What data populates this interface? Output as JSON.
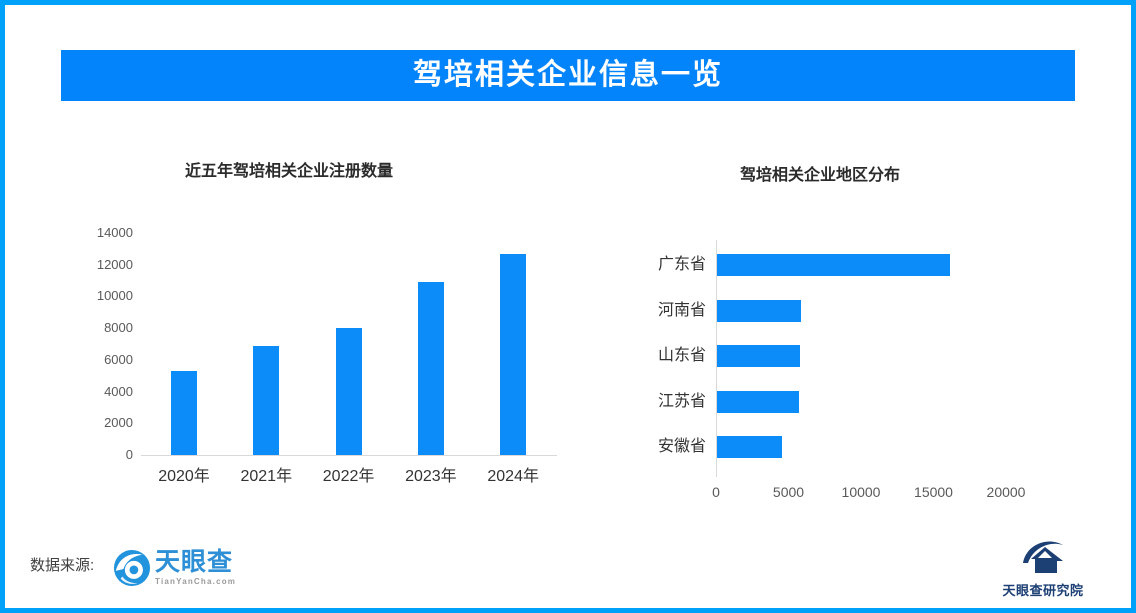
{
  "colors": {
    "page_border": "#00A1F8",
    "banner_bg": "#0484FB",
    "bar_fill": "#0C8CF8",
    "axis_line": "#D9D9D9",
    "tianyancha_blue": "#2D8FD6",
    "research_navy": "#1C3F74"
  },
  "header": {
    "title": "驾培相关企业信息一览"
  },
  "chart_data": [
    {
      "type": "bar",
      "title": "近五年驾培相关企业注册数量",
      "categories": [
        "2020年",
        "2021年",
        "2022年",
        "2023年",
        "2024年"
      ],
      "values": [
        5300,
        6900,
        8000,
        10900,
        12700
      ],
      "xlabel": "",
      "ylabel": "",
      "ylim": [
        0,
        14000
      ],
      "yticks": [
        0,
        2000,
        4000,
        6000,
        8000,
        10000,
        12000,
        14000
      ],
      "grid": false,
      "legend": "none",
      "bar_color": "#0C8CF8"
    },
    {
      "type": "bar",
      "orientation": "horizontal",
      "title": "驾培相关企业地区分布",
      "categories": [
        "广东省",
        "河南省",
        "山东省",
        "江苏省",
        "安徽省"
      ],
      "values": [
        16100,
        5800,
        5700,
        5650,
        4450
      ],
      "xlabel": "",
      "ylabel": "",
      "xlim": [
        0,
        20000
      ],
      "xticks": [
        0,
        5000,
        10000,
        15000,
        20000
      ],
      "grid": false,
      "legend": "none",
      "bar_color": "#0C8CF8"
    }
  ],
  "footer": {
    "source_label": "数据来源:",
    "tianyancha": {
      "name": "天眼查",
      "subtext": "TianYanCha.com"
    },
    "research_institute": {
      "label": "天眼查研究院"
    }
  }
}
